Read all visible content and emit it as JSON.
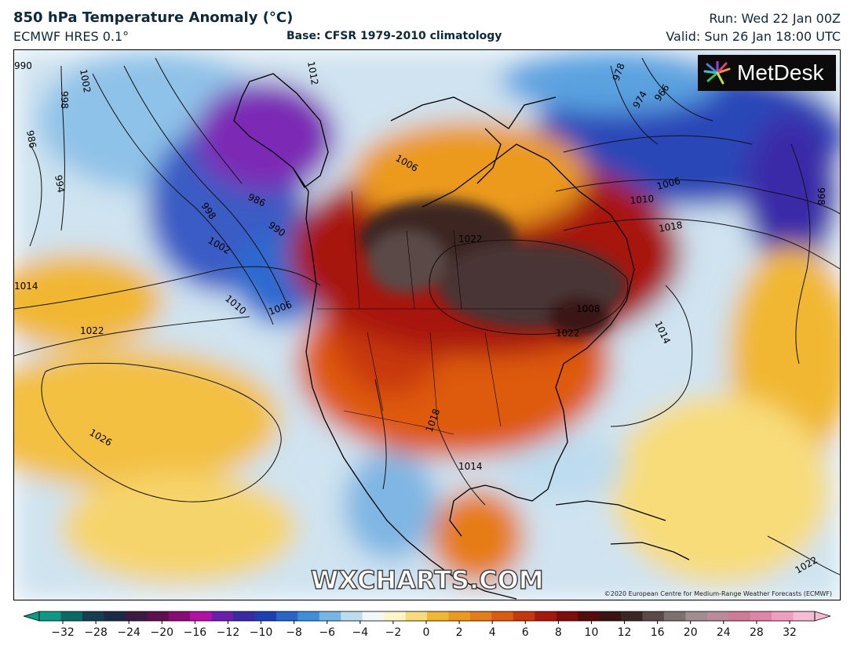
{
  "header": {
    "title": "850 hPa Temperature Anomaly (°C)",
    "model": "ECMWF HRES 0.1°",
    "base": "Base: CFSR 1979-2010 climatology",
    "run": "Run: Wed 22 Jan 00Z",
    "valid": "Valid: Sun 26 Jan 18:00 UTC"
  },
  "branding": {
    "logo_text": "MetDesk",
    "watermark": "WXCHARTS.COM",
    "copyright": "©2020 European Centre for Medium-Range Weather Forecasts (ECMWF)"
  },
  "map": {
    "isobar_labels": [
      "990",
      "1002",
      "998",
      "986",
      "994",
      "1012",
      "986",
      "990",
      "998",
      "1002",
      "1010",
      "1006",
      "1014",
      "1022",
      "1026",
      "1006",
      "1022",
      "1018",
      "1014",
      "1022",
      "1018",
      "1008",
      "1010",
      "1006",
      "978",
      "974",
      "966",
      "998",
      "1014",
      "1022"
    ]
  },
  "colorbar": {
    "ticks": [
      "-32",
      "-28",
      "-24",
      "-20",
      "-16",
      "-12",
      "-10",
      "-8",
      "-6",
      "-4",
      "-2",
      "0",
      "2",
      "4",
      "6",
      "8",
      "10",
      "12",
      "16",
      "20",
      "24",
      "28",
      "32"
    ],
    "colors": [
      "#0a9a86",
      "#0a6b66",
      "#123f52",
      "#1a2a48",
      "#3a1c44",
      "#5e0f52",
      "#8a0a78",
      "#b60fa8",
      "#6a1fb0",
      "#3a2aa8",
      "#1b40b5",
      "#2766c8",
      "#3d8edd",
      "#74b6e6",
      "#bedcef",
      "#f2f7fa",
      "#fff6c8",
      "#f8dc7a",
      "#f1b733",
      "#eb9a1b",
      "#e67c14",
      "#de5a0e",
      "#c8370a",
      "#a7180a",
      "#7e0c0a",
      "#560a0a",
      "#3a1412",
      "#3c2624",
      "#5a4946",
      "#7d7170",
      "#a08d8f",
      "#b98b9a",
      "#cf7b97",
      "#e084a8",
      "#ef9dc0",
      "#f7bcd5"
    ]
  }
}
